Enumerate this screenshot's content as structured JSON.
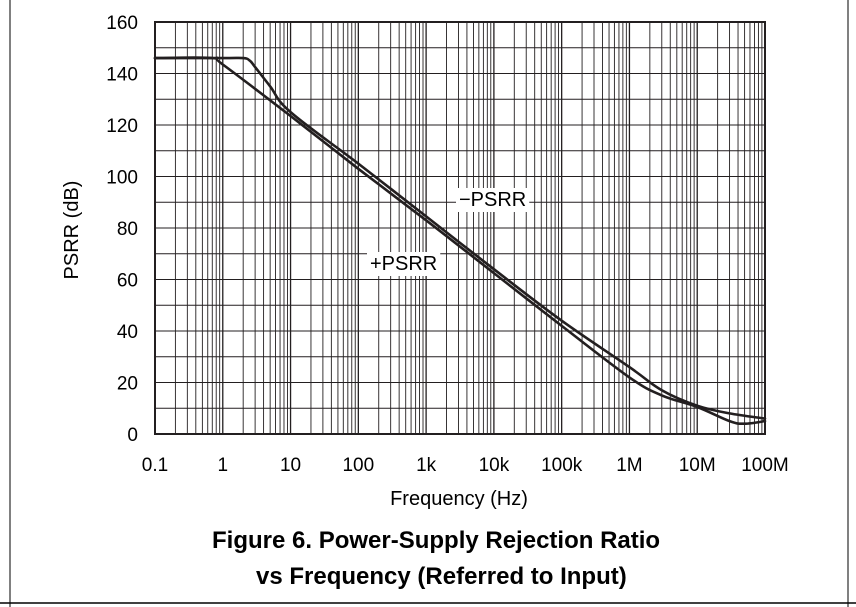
{
  "figure": {
    "caption_line1": "Figure 6. Power-Supply Rejection Ratio",
    "caption_line2": "vs Frequency (Referred to Input)"
  },
  "chart_data": {
    "type": "line",
    "title": "",
    "xlabel": "Frequency (Hz)",
    "ylabel": "PSRR (dB)",
    "xscale": "log",
    "xlim": [
      0.1,
      100000000
    ],
    "ylim": [
      0,
      160
    ],
    "grid": true,
    "legend": "inline labels",
    "x_tick_labels": [
      "0.1",
      "1",
      "10",
      "100",
      "1k",
      "10k",
      "100k",
      "1M",
      "10M",
      "100M"
    ],
    "y_tick_labels": [
      "0",
      "20",
      "40",
      "60",
      "80",
      "100",
      "120",
      "140",
      "160"
    ],
    "line_color": "#231f20",
    "series": [
      {
        "name": "−PSRR",
        "x": [
          0.1,
          1,
          2,
          2.5,
          3,
          5,
          10,
          100,
          1000,
          10000,
          100000,
          1000000,
          3000000,
          10000000,
          30000000,
          100000000
        ],
        "y": [
          146,
          146,
          146,
          145,
          142.5,
          135,
          125,
          105,
          84.5,
          64,
          44,
          26,
          17,
          11,
          8,
          6
        ]
      },
      {
        "name": "+PSRR",
        "x": [
          0.1,
          0.7,
          1,
          10,
          100,
          1000,
          10000,
          100000,
          1000000,
          3000000,
          10000000,
          30000000,
          50000000,
          100000000
        ],
        "y": [
          146,
          146,
          143.5,
          123.5,
          103,
          83,
          62.5,
          42,
          22,
          15,
          10.5,
          5,
          4,
          5
        ]
      }
    ]
  }
}
